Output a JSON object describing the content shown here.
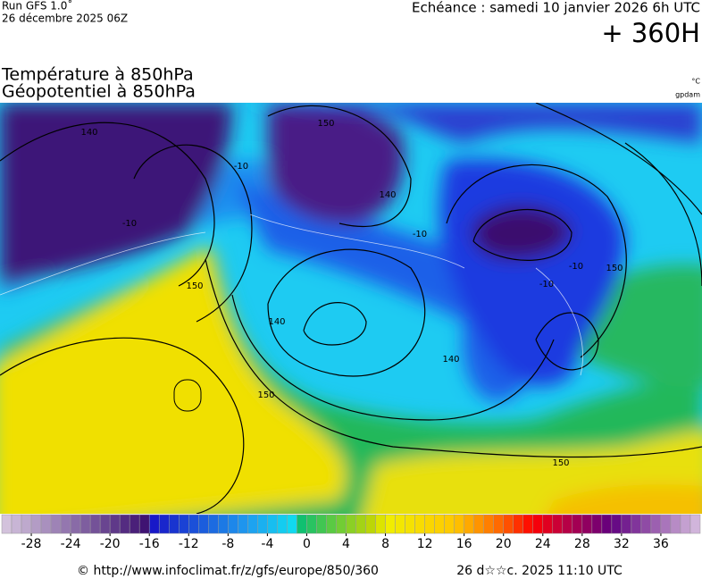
{
  "header": {
    "run": "Run GFS 1.0˚",
    "run_date": "26 décembre 2025 06Z",
    "valid": "Echéance : samedi 10 janvier 2026 6h UTC",
    "lead": "+ 360H",
    "title_1": "Température à 850hPa",
    "title_2": "Géopotentiel à 850hPa",
    "unit_1": "°C",
    "unit_2": "gpdam"
  },
  "map": {
    "contour_labels": [
      "140",
      "150",
      "-10",
      "-10",
      "150",
      "140",
      "-10",
      "140",
      "150",
      "-10",
      "150",
      "140",
      "150",
      "-10"
    ]
  },
  "colorbar": {
    "range": [
      -31,
      40
    ],
    "ticks": [
      -28,
      -24,
      -20,
      -16,
      -12,
      -8,
      -4,
      0,
      4,
      8,
      12,
      16,
      20,
      24,
      28,
      32,
      36
    ]
  },
  "footer": {
    "source": "© http://www.infoclimat.fr/z/gfs/europe/850/360",
    "stamp": "26 d☆☆c. 2025 11:10 UTC"
  }
}
